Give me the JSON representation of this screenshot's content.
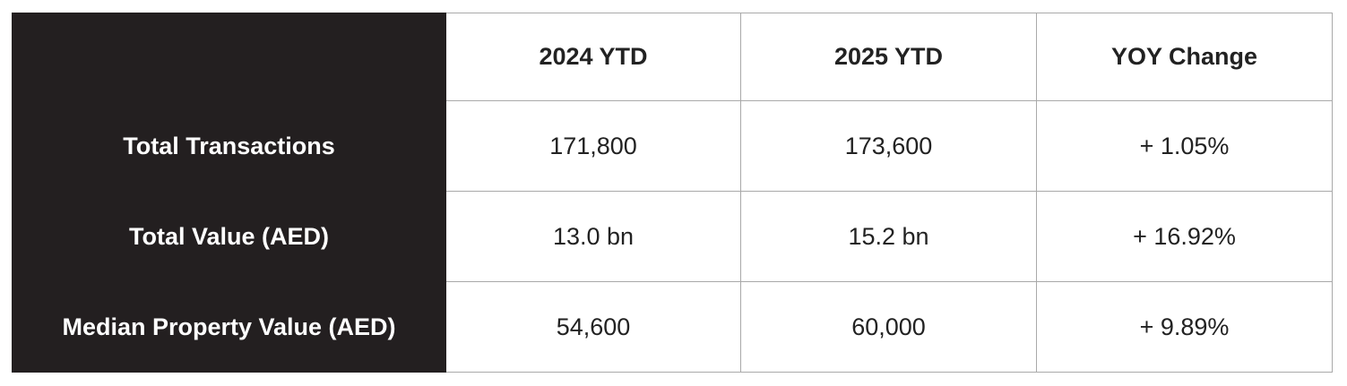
{
  "table": {
    "header": [
      "2024 YTD",
      "2025 YTD",
      "YOY Change"
    ],
    "rows": [
      [
        "Total Transactions",
        "171,800",
        "173,600",
        "+ 1.05%"
      ],
      [
        "Total Value (AED)",
        "13.0 bn",
        "15.2 bn",
        "+ 16.92%"
      ],
      [
        "Median Property Value (AED)",
        "54,600",
        "60,000",
        "+ 9.89%"
      ]
    ]
  }
}
